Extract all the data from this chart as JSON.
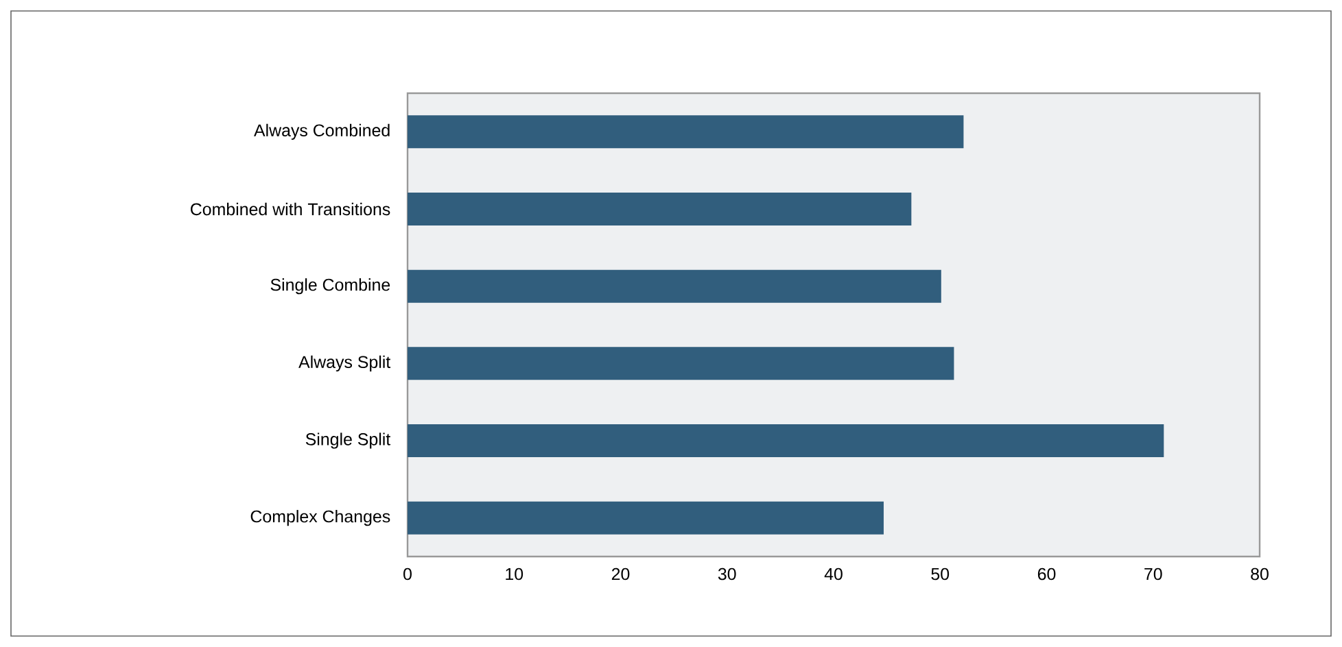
{
  "chart_data": {
    "type": "bar",
    "orientation": "horizontal",
    "categories": [
      "Always Combined",
      "Combined with Transitions",
      "Single Combine",
      "Always Split",
      "Single Split",
      "Complex Changes"
    ],
    "values": [
      52.2,
      47.3,
      50.1,
      51.3,
      71.0,
      44.7
    ],
    "color": "#315e7d",
    "xlim": [
      0,
      80
    ],
    "xticks": [
      0,
      10,
      20,
      30,
      40,
      50,
      60,
      70,
      80
    ]
  }
}
